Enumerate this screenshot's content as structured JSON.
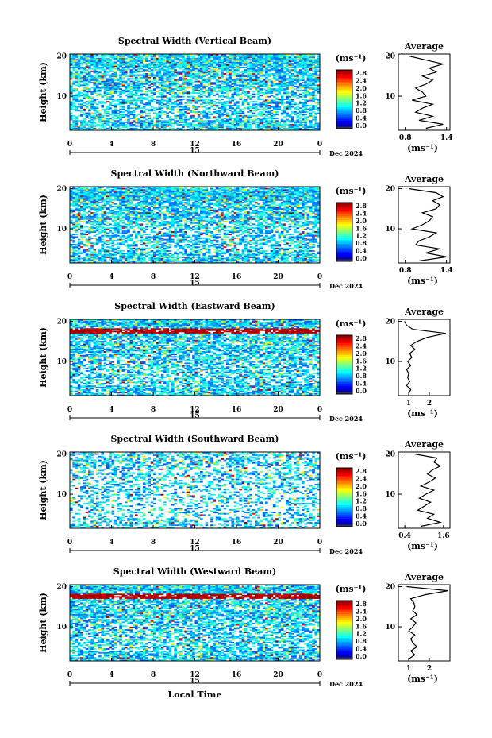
{
  "figure": {
    "xlabel": "Local Time",
    "colorbar_unit": "(ms⁻¹)",
    "avg_unit": "(ms⁻¹)",
    "avg_title": "Average",
    "date_label": "Dec 2024",
    "day_label": "15",
    "colorbar_ticks": [
      "2.8",
      "2.4",
      "2.0",
      "1.6",
      "1.2",
      "0.8",
      "0.4",
      "0.0"
    ]
  },
  "chart_data": [
    {
      "type": "heatmap",
      "title": "Spectral Width (Vertical Beam)",
      "ylabel": "Height (km)",
      "x_ticks": [
        "0",
        "4",
        "8",
        "12",
        "16",
        "20",
        "0"
      ],
      "y_ticks": [
        "20",
        "10"
      ],
      "xlim": [
        0,
        24
      ],
      "ylim": [
        1.5,
        20.5
      ],
      "clim": [
        0.0,
        3.0
      ],
      "profile": {
        "title": "Average",
        "x_ticks": [
          "0.8",
          "1.4"
        ],
        "xlim": [
          0.7,
          1.45
        ],
        "heights": [
          2,
          3,
          4,
          5,
          6,
          7,
          8,
          9,
          10,
          11,
          12,
          13,
          14,
          15,
          16,
          17,
          18,
          19,
          20
        ],
        "values": [
          1.1,
          1.35,
          1.0,
          1.2,
          0.95,
          1.05,
          1.2,
          0.9,
          1.1,
          1.05,
          0.95,
          1.1,
          1.2,
          1.05,
          1.25,
          1.15,
          1.35,
          1.1,
          0.85
        ]
      }
    },
    {
      "type": "heatmap",
      "title": "Spectral Width (Northward Beam)",
      "ylabel": "Height (km)",
      "x_ticks": [
        "0",
        "4",
        "8",
        "12",
        "16",
        "20",
        "0"
      ],
      "y_ticks": [
        "20",
        "10"
      ],
      "xlim": [
        0,
        24
      ],
      "ylim": [
        1.5,
        20.5
      ],
      "clim": [
        0.0,
        3.0
      ],
      "profile": {
        "title": "Average",
        "x_ticks": [
          "0.8",
          "1.4"
        ],
        "xlim": [
          0.7,
          1.45
        ],
        "heights": [
          2,
          3,
          4,
          5,
          6,
          7,
          8,
          9,
          10,
          11,
          12,
          13,
          14,
          15,
          16,
          17,
          18,
          19,
          20
        ],
        "values": [
          1.0,
          1.4,
          1.1,
          1.3,
          0.95,
          1.0,
          1.15,
          1.25,
          0.9,
          1.05,
          1.15,
          1.2,
          1.05,
          1.25,
          1.3,
          1.2,
          1.35,
          1.25,
          0.85
        ]
      }
    },
    {
      "type": "heatmap",
      "title": "Spectral Width (Eastward Beam)",
      "ylabel": "Height (km)",
      "x_ticks": [
        "0",
        "4",
        "8",
        "12",
        "16",
        "20",
        "0"
      ],
      "y_ticks": [
        "20",
        "10"
      ],
      "xlim": [
        0,
        24
      ],
      "ylim": [
        1.5,
        20.5
      ],
      "clim": [
        0.0,
        3.0
      ],
      "profile": {
        "title": "Average",
        "x_ticks": [
          "1",
          "2"
        ],
        "xlim": [
          0.5,
          3.0
        ],
        "heights": [
          2,
          3,
          4,
          5,
          6,
          7,
          8,
          9,
          10,
          11,
          12,
          13,
          14,
          15,
          16,
          17,
          18,
          19,
          20
        ],
        "values": [
          1.0,
          1.1,
          0.9,
          1.05,
          0.95,
          1.0,
          0.9,
          1.1,
          0.95,
          1.15,
          1.05,
          1.3,
          1.1,
          1.4,
          1.9,
          2.8,
          1.2,
          0.9,
          0.8
        ]
      }
    },
    {
      "type": "heatmap",
      "title": "Spectral Width (Southward Beam)",
      "ylabel": "Height (km)",
      "x_ticks": [
        "0",
        "4",
        "8",
        "12",
        "16",
        "20",
        "0"
      ],
      "y_ticks": [
        "20",
        "10"
      ],
      "xlim": [
        0,
        24
      ],
      "ylim": [
        1.5,
        20.5
      ],
      "clim": [
        0.0,
        3.0
      ],
      "profile": {
        "title": "Average",
        "x_ticks": [
          "0.4",
          "1.6"
        ],
        "xlim": [
          0.2,
          1.8
        ],
        "heights": [
          2,
          3,
          4,
          5,
          6,
          7,
          8,
          9,
          10,
          11,
          12,
          13,
          14,
          15,
          16,
          17,
          18,
          19,
          20
        ],
        "values": [
          0.9,
          1.5,
          1.1,
          1.3,
          0.8,
          1.0,
          1.2,
          0.85,
          1.05,
          1.3,
          0.9,
          1.15,
          1.35,
          1.1,
          1.25,
          1.5,
          1.3,
          1.4,
          0.7
        ]
      }
    },
    {
      "type": "heatmap",
      "title": "Spectral Width (Westward Beam)",
      "ylabel": "Height (km)",
      "x_ticks": [
        "0",
        "4",
        "8",
        "12",
        "16",
        "20",
        "0"
      ],
      "y_ticks": [
        "20",
        "10"
      ],
      "xlim": [
        0,
        24
      ],
      "ylim": [
        1.5,
        20.5
      ],
      "clim": [
        0.0,
        3.0
      ],
      "profile": {
        "title": "Average",
        "x_ticks": [
          "1",
          "2"
        ],
        "xlim": [
          0.5,
          3.0
        ],
        "heights": [
          2,
          3,
          4,
          5,
          6,
          7,
          8,
          9,
          10,
          11,
          12,
          13,
          14,
          15,
          16,
          17,
          18,
          19,
          20
        ],
        "values": [
          1.0,
          1.3,
          1.1,
          1.4,
          1.2,
          1.1,
          1.3,
          1.0,
          1.2,
          1.35,
          1.1,
          1.4,
          1.2,
          1.3,
          1.25,
          1.1,
          1.8,
          2.9,
          0.9
        ]
      }
    }
  ]
}
